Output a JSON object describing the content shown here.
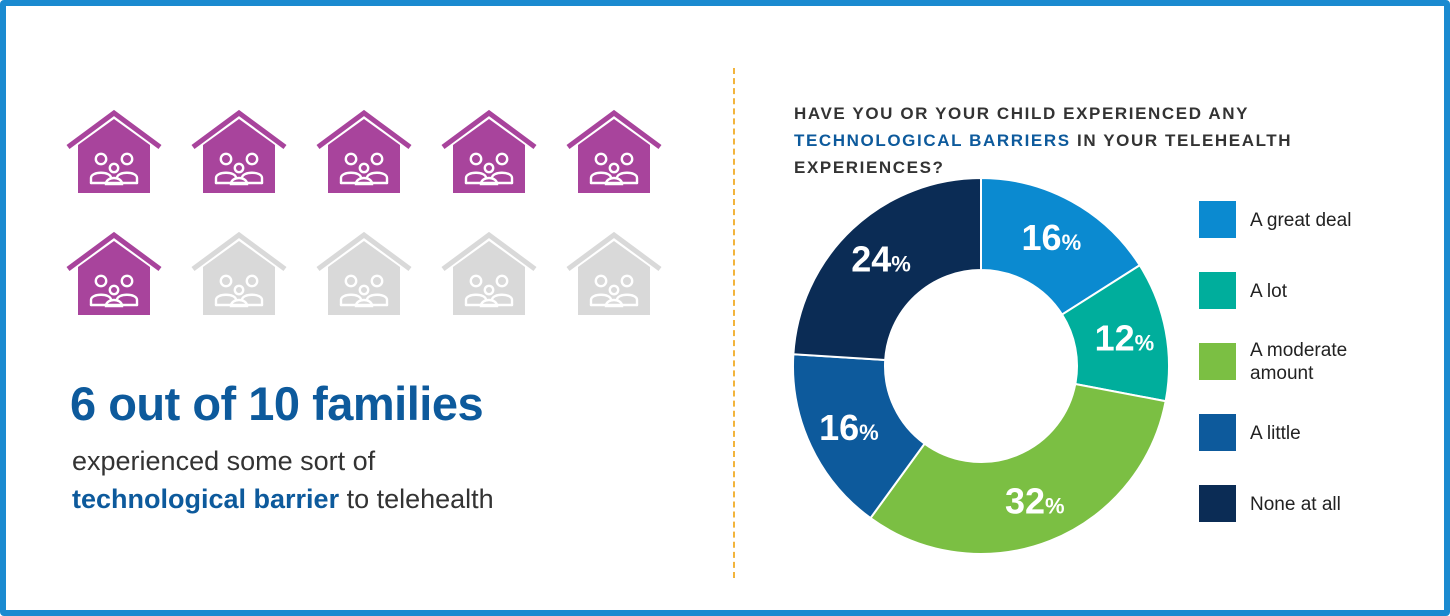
{
  "infographic": {
    "icons": {
      "total": 10,
      "highlighted": 6,
      "icon_name": "house-family-icon",
      "highlight_color": "#a8449c",
      "muted_color": "#d9d9d9"
    },
    "headline": "6 out of 10 families",
    "subtext": {
      "line1": "experienced some sort of",
      "emphasis": "technological barrier",
      "rest": " to telehealth"
    },
    "accent_color": "#0d5a9c",
    "border_color": "#1a8ad0",
    "divider_color": "#f2b43c"
  },
  "question": {
    "part1": "HAVE YOU OR YOUR CHILD EXPERIENCED ANY ",
    "emphasis": "TECHNOLOGICAL BARRIERS",
    "part2": " IN YOUR TELEHEALTH EXPERIENCES?"
  },
  "chart_data": {
    "type": "pie",
    "donut": true,
    "title": "HAVE YOU OR YOUR CHILD EXPERIENCED ANY TECHNOLOGICAL BARRIERS IN YOUR TELEHEALTH EXPERIENCES?",
    "categories": [
      "A great deal",
      "A lot",
      "A moderate amount",
      "A little",
      "None at all"
    ],
    "values": [
      16,
      12,
      32,
      16,
      24
    ],
    "unit": "%",
    "colors": [
      "#0b8ad0",
      "#00ae9c",
      "#7bbf43",
      "#0d5a9c",
      "#0b2c55"
    ],
    "legend_position": "right",
    "legend_labels": [
      [
        "A great deal"
      ],
      [
        "A lot"
      ],
      [
        "A moderate",
        "amount"
      ],
      [
        "A little"
      ],
      [
        "None at all"
      ]
    ]
  }
}
